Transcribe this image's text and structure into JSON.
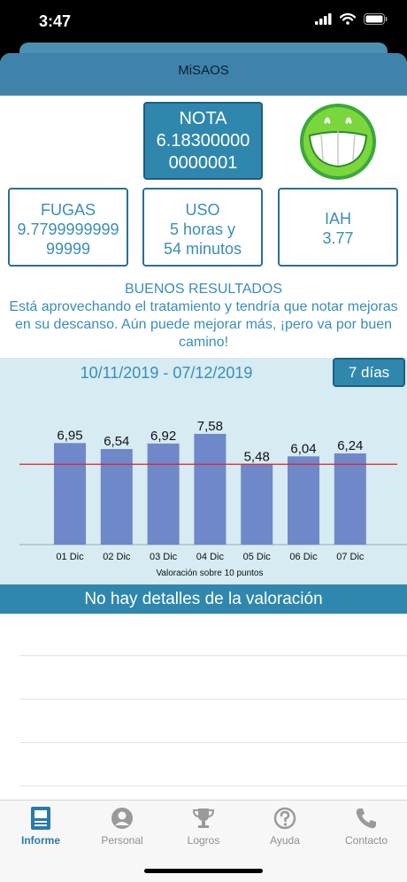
{
  "status_bar": {
    "time": "3:47"
  },
  "app": {
    "title": "MiSAOS"
  },
  "nota": {
    "label": "NOTA",
    "value_line1": "6.18300000",
    "value_line2": "0000001"
  },
  "mood_icon": "smiley-face-icon",
  "metrics": {
    "fugas": {
      "label": "FUGAS",
      "value_line1": "9.7799999999",
      "value_line2": "99999"
    },
    "uso": {
      "label": "USO",
      "value_line1": "5 horas y",
      "value_line2": "54 minutos"
    },
    "iah": {
      "label": "IAH",
      "value": "3.77"
    }
  },
  "result": {
    "title": "BUENOS RESULTADOS",
    "message": "Está aprovechando el tratamiento y tendría que notar mejoras en su descanso. Aún puede mejorar más, ¡pero va por buen camino!"
  },
  "period": {
    "date_range": "10/11/2019 - 07/12/2019",
    "button_label": "7 días"
  },
  "chart_data": {
    "type": "bar",
    "categories": [
      "01 Dic",
      "02 Dic",
      "03 Dic",
      "04 Dic",
      "05 Dic",
      "06 Dic",
      "07 Dic"
    ],
    "values": [
      6.95,
      6.54,
      6.92,
      7.58,
      5.48,
      6.04,
      6.24
    ],
    "value_labels": [
      "6,95",
      "6,54",
      "6,92",
      "7,58",
      "5,48",
      "6,04",
      "6,24"
    ],
    "xlabel": "Valoración sobre 10 puntos",
    "ylim": [
      0,
      10
    ],
    "reference_line": 5.5,
    "colors": {
      "bar": "#6f88c9",
      "reference_line": "#e02020"
    }
  },
  "details": {
    "message": "No hay detalles de la valoración"
  },
  "tabs": [
    {
      "label": "Informe",
      "icon": "report-icon",
      "active": true
    },
    {
      "label": "Personal",
      "icon": "person-icon",
      "active": false
    },
    {
      "label": "Logros",
      "icon": "trophy-icon",
      "active": false
    },
    {
      "label": "Ayuda",
      "icon": "help-icon",
      "active": false
    },
    {
      "label": "Contacto",
      "icon": "phone-icon",
      "active": false
    }
  ],
  "colors": {
    "accent": "#2f87ad",
    "header": "#4083aa",
    "text_accent": "#3a8dba",
    "tab_active": "#2a79ab"
  }
}
